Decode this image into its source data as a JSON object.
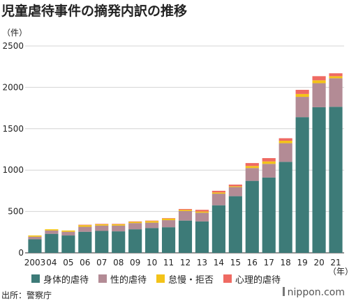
{
  "chart_data": {
    "type": "bar",
    "stacked": true,
    "title": "児童虐待事件の摘発内訳の推移",
    "y_unit_label": "（件）",
    "x_unit_label": "（年）",
    "ylim": [
      0,
      2500
    ],
    "yticks": [
      0,
      500,
      1000,
      1500,
      2000,
      2500
    ],
    "grid": true,
    "legend_position": "bottom",
    "categories": [
      "2003",
      "04",
      "05",
      "06",
      "07",
      "08",
      "09",
      "10",
      "11",
      "12",
      "13",
      "14",
      "15",
      "16",
      "17",
      "18",
      "19",
      "20",
      "21"
    ],
    "series": [
      {
        "name": "身体的虐待",
        "color": "#3d7b78",
        "values": [
          165,
          230,
          210,
          255,
          265,
          260,
          285,
          300,
          310,
          390,
          380,
          575,
          685,
          870,
          910,
          1100,
          1640,
          1760,
          1765
        ]
      },
      {
        "name": "性的虐待",
        "color": "#b38b95",
        "values": [
          30,
          40,
          45,
          60,
          65,
          70,
          75,
          65,
          85,
          115,
          105,
          140,
          110,
          155,
          165,
          225,
          245,
          290,
          345
        ]
      },
      {
        "name": "怠慢・拒否",
        "color": "#f3c319",
        "values": [
          15,
          15,
          15,
          20,
          15,
          15,
          15,
          20,
          20,
          15,
          15,
          15,
          10,
          25,
          30,
          30,
          35,
          35,
          25
        ]
      },
      {
        "name": "心理的虐待",
        "color": "#ef6a62",
        "values": [
          0,
          0,
          0,
          5,
          5,
          5,
          5,
          5,
          5,
          10,
          20,
          20,
          20,
          35,
          40,
          30,
          50,
          50,
          35
        ]
      }
    ]
  },
  "source": "出所：警察庁",
  "logo": "nippon.com"
}
